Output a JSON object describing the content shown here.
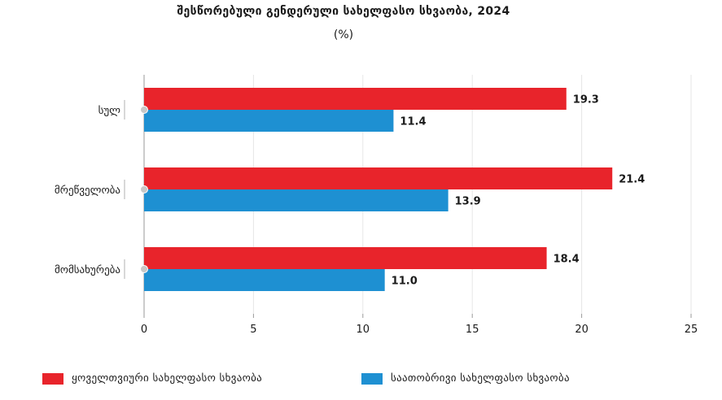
{
  "chart_data": {
    "type": "bar",
    "orientation": "horizontal",
    "title": "შესწორებული გენდერული სახელფასო სხვაობა, 2024",
    "subtitle": "(%)",
    "categories": [
      "სულ",
      "მრეწველობა",
      "მომსახურება"
    ],
    "series": [
      {
        "name": "ყოველთვიური სახელფასო სხვაობა",
        "color": "#e8242b",
        "values": [
          19.3,
          21.4,
          18.4
        ]
      },
      {
        "name": "საათობრივი სახელფასო სხვაობა",
        "color": "#1e90d2",
        "values": [
          11.4,
          13.9,
          11.0
        ]
      }
    ],
    "xlim": [
      0,
      25
    ],
    "xticks": [
      0,
      5,
      10,
      15,
      20,
      25
    ],
    "grid": true,
    "legend_position": "bottom"
  }
}
